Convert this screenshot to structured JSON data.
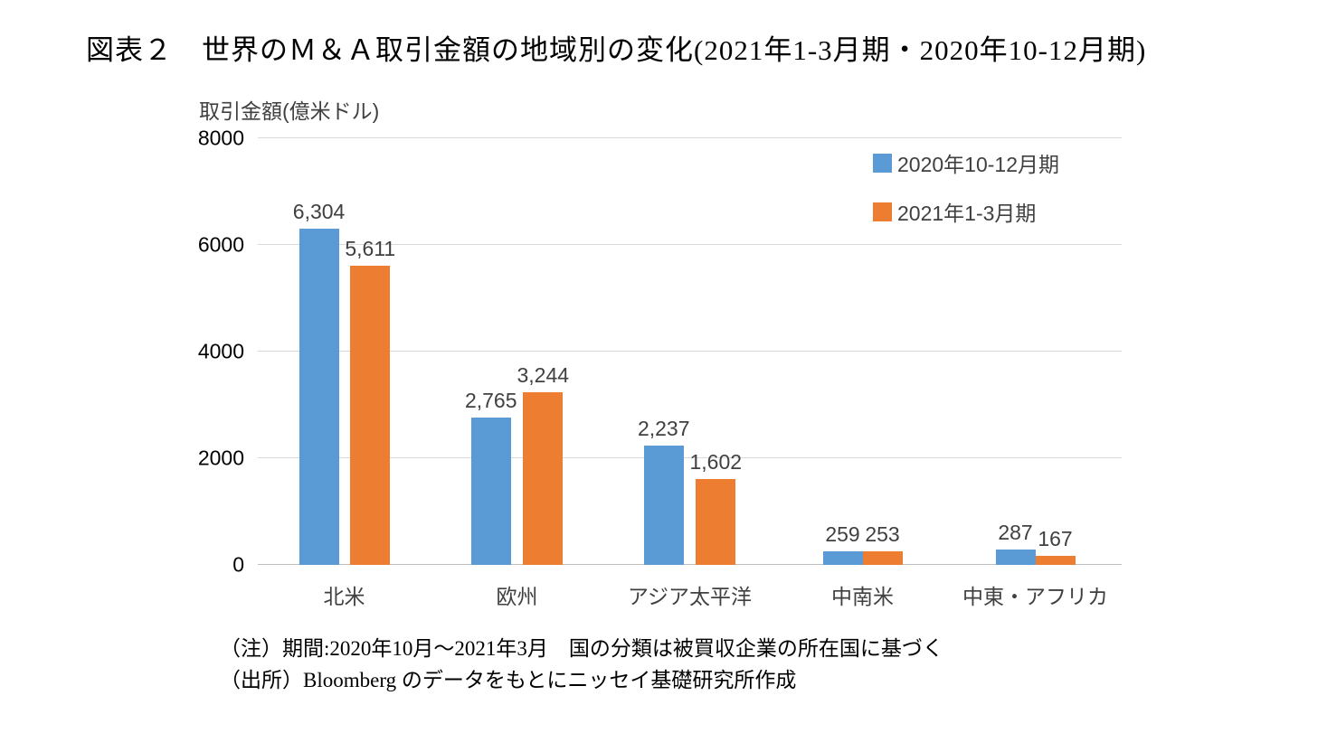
{
  "title": "図表２　世界のＭ＆Ａ取引金額の地域別の変化(2021年1-3月期・2020年10-12月期)",
  "chart_data": {
    "type": "bar",
    "categories": [
      "北米",
      "欧州",
      "アジア太平洋",
      "中南米",
      "中東・アフリカ"
    ],
    "series": [
      {
        "name": "2020年10-12月期",
        "color": "#5B9BD5",
        "values": [
          6304,
          2765,
          2237,
          259,
          287
        ],
        "labels": [
          "6,304",
          "2,765",
          "2,237",
          "259",
          "287"
        ]
      },
      {
        "name": "2021年1-3月期",
        "color": "#ED7D31",
        "values": [
          5611,
          3244,
          1602,
          253,
          167
        ],
        "labels": [
          "5,611",
          "3,244",
          "1,602",
          "253",
          "167"
        ]
      }
    ],
    "ylabel": "取引金額(億米ドル)",
    "xlabel": "",
    "ylim": [
      0,
      8000
    ],
    "yticks": [
      0,
      2000,
      4000,
      6000,
      8000
    ],
    "grid": true,
    "legend_position": "top-right"
  },
  "notes": {
    "line1": "（注）期間:2020年10月～2021年3月　国の分類は被買収企業の所在国に基づく",
    "line2": "（出所）Bloomberg のデータをもとにニッセイ基礎研究所作成"
  }
}
